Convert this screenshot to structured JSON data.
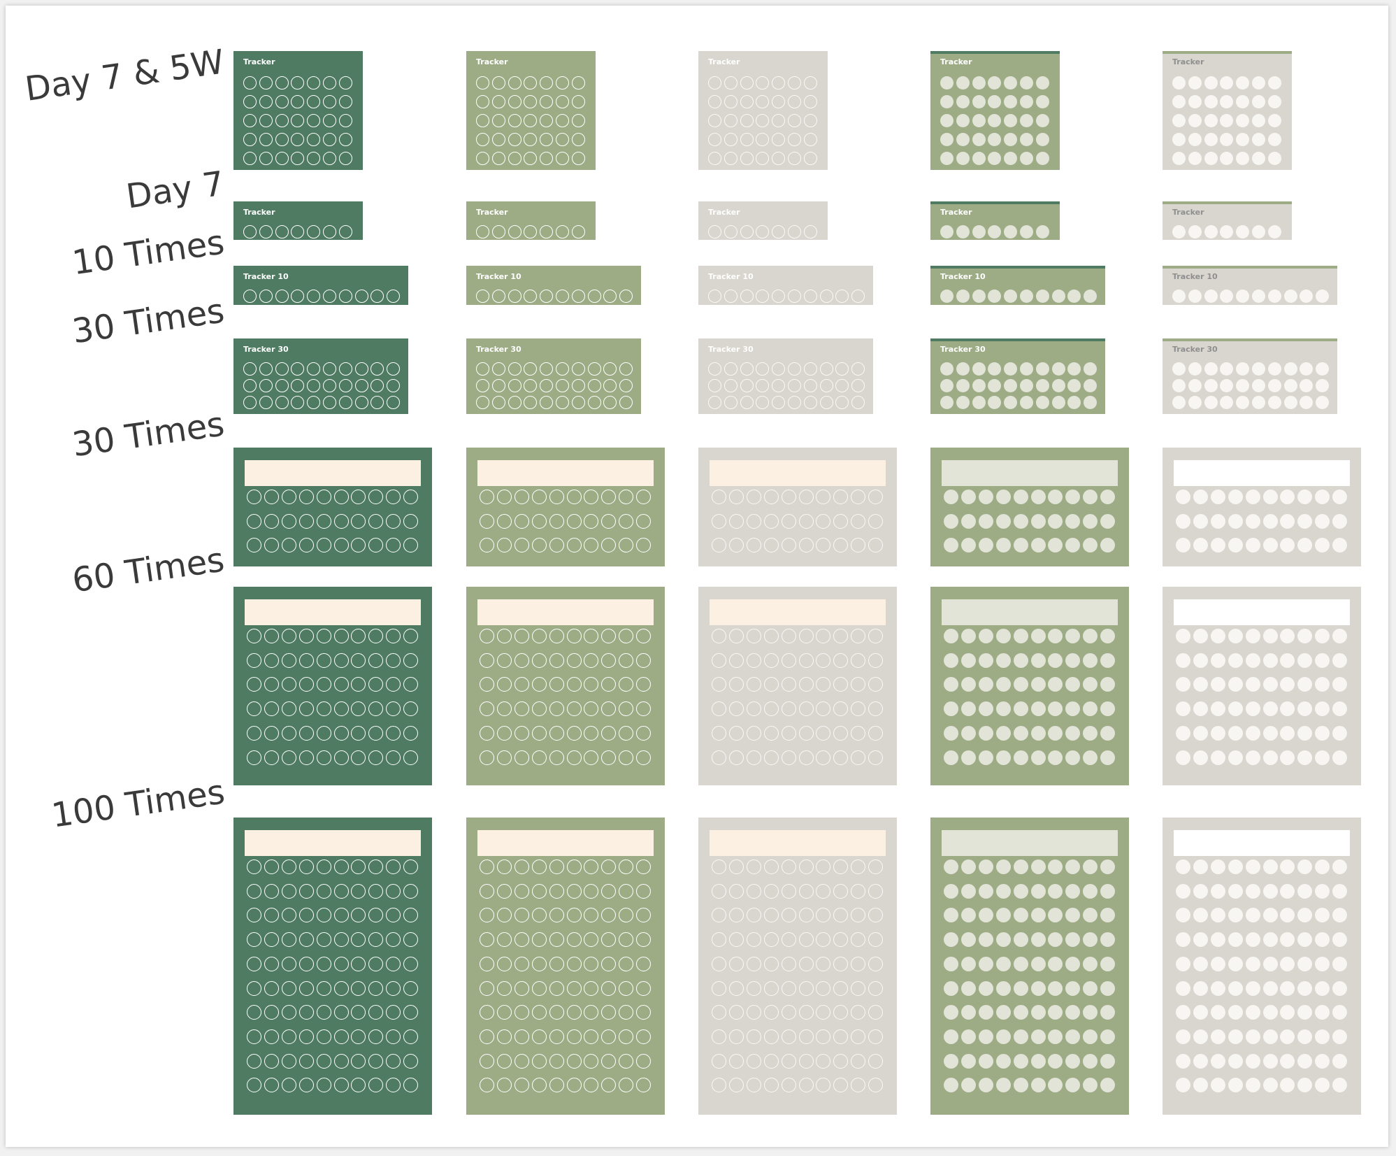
{
  "rows": [
    {
      "label": "Day 7 & 5W",
      "title": "Tracker",
      "variant": "small",
      "cols": 7,
      "circleRows": 5
    },
    {
      "label": "Day 7",
      "title": "Tracker",
      "variant": "small",
      "cols": 7,
      "circleRows": 1
    },
    {
      "label": "10 Times",
      "title": "Tracker 10",
      "variant": "small",
      "cols": 10,
      "circleRows": 1
    },
    {
      "label": "30 Times",
      "title": "Tracker 30",
      "variant": "small",
      "cols": 10,
      "circleRows": 3
    },
    {
      "label": "30 Times",
      "title": "",
      "variant": "large",
      "cols": 10,
      "circleRows": 3
    },
    {
      "label": "60 Times",
      "title": "",
      "variant": "large",
      "cols": 10,
      "circleRows": 6
    },
    {
      "label": "100 Times",
      "title": "",
      "variant": "large",
      "cols": 10,
      "circleRows": 10
    }
  ],
  "themes": [
    {
      "name": "dark-green-outline",
      "bg": "#4e7b62",
      "title": "#ffffff",
      "ring": "#ffffff",
      "fill": "",
      "bar": "#fcf0e2",
      "accent": ""
    },
    {
      "name": "sage-outline",
      "bg": "#9eac86",
      "title": "#ffffff",
      "ring": "#ffffff",
      "fill": "",
      "bar": "#fcf0e2",
      "accent": ""
    },
    {
      "name": "stone-outline",
      "bg": "#d8d6ce",
      "title": "#ffffff",
      "ring": "#ffffff",
      "fill": "",
      "bar": "#fcf0e2",
      "accent": ""
    },
    {
      "name": "sage-filled",
      "bg": "#9eac86",
      "title": "#ffffff",
      "ring": "",
      "fill": "#e2e4d8",
      "bar": "#e2e4d8",
      "accent": "#4e7b62"
    },
    {
      "name": "stone-filled",
      "bg": "#d8d6ce",
      "title": "#8f8f8f",
      "ring": "",
      "fill": "#f7f6f2",
      "bar": "#ffffff",
      "accent": "#9eac86"
    }
  ]
}
